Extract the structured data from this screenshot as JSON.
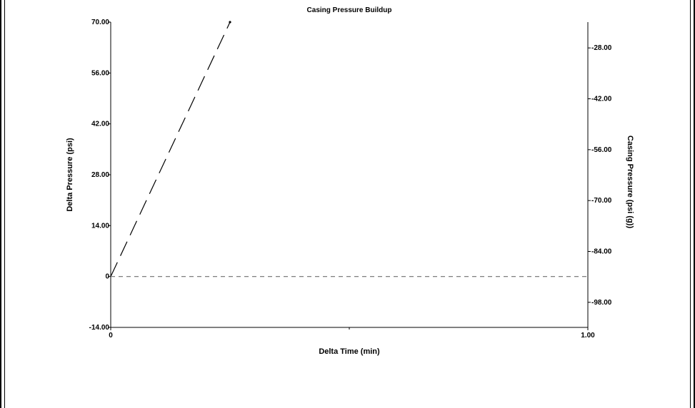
{
  "chart_data": {
    "type": "line",
    "title": "Casing Pressure Buildup",
    "xlabel": "Delta Time (min)",
    "ylabel": "Delta Pressure (psi)",
    "y2label": "Casing Pressure (psi (g))",
    "xlim": [
      0,
      1
    ],
    "ylim": [
      -14,
      70
    ],
    "y2lim": [
      -104.9,
      -20.9
    ],
    "x_ticks": [
      "0",
      "1.00"
    ],
    "x_minor_ticks": [
      0.5
    ],
    "y_ticks": [
      {
        "value": 70,
        "label": "70.00"
      },
      {
        "value": 56,
        "label": "56.00"
      },
      {
        "value": 42,
        "label": "42.00"
      },
      {
        "value": 28,
        "label": "28.00"
      },
      {
        "value": 14,
        "label": "14.00"
      },
      {
        "value": 0,
        "label": "0"
      },
      {
        "value": -14,
        "label": "-14.00"
      }
    ],
    "y2_ticks": [
      {
        "value": -28,
        "label": "-28.00"
      },
      {
        "value": -42,
        "label": "-42.00"
      },
      {
        "value": -56,
        "label": "-56.00"
      },
      {
        "value": -70,
        "label": "-70.00"
      },
      {
        "value": -84,
        "label": "-84.00"
      },
      {
        "value": -98,
        "label": "-98.00"
      }
    ],
    "series": [
      {
        "style": "long-dash",
        "color": "#000000",
        "x": [
          0,
          0.25
        ],
        "y": [
          0,
          70
        ]
      },
      {
        "style": "short-dash",
        "color": "#6e6e6e",
        "x": [
          0,
          1
        ],
        "y": [
          0,
          0
        ]
      }
    ],
    "grid": false
  }
}
